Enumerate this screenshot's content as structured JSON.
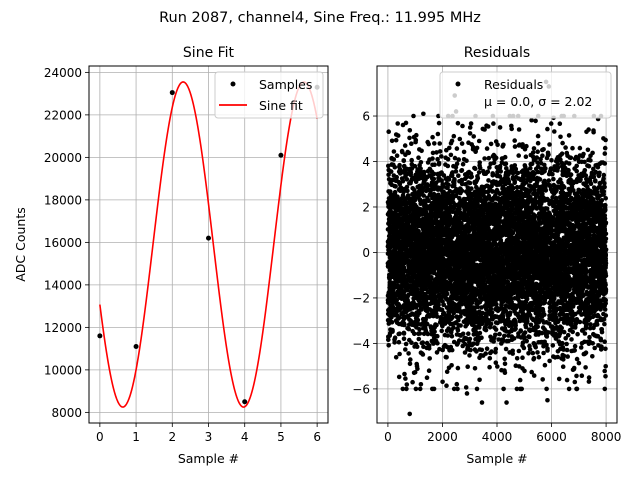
{
  "suptitle": "Run 2087, channel4, Sine Freq.: 11.995 MHz",
  "chart_data": [
    {
      "type": "line",
      "title": "Sine Fit",
      "xlabel": "Sample #",
      "ylabel": "ADC Counts",
      "xlim": [
        -0.3,
        6.3
      ],
      "ylim": [
        7500,
        24300
      ],
      "grid": true,
      "xticks": [
        0,
        1,
        2,
        3,
        4,
        5,
        6
      ],
      "yticks": [
        8000,
        10000,
        12000,
        14000,
        16000,
        18000,
        20000,
        22000,
        24000
      ],
      "legend_position": "top-right",
      "series": [
        {
          "name": "Samples",
          "kind": "scatter",
          "color": "#000000",
          "x": [
            0,
            1,
            2,
            3,
            4,
            5,
            6
          ],
          "y": [
            11600,
            11100,
            23050,
            16200,
            8500,
            20100,
            23300
          ]
        },
        {
          "name": "Sine fit",
          "kind": "line",
          "color": "#ff0000",
          "model": {
            "offset": 15900,
            "amplitude": 7650,
            "period_samples": 3.335,
            "phase_rad": 3.52
          },
          "x_range": [
            0,
            6
          ]
        }
      ]
    },
    {
      "type": "scatter",
      "title": "Residuals",
      "xlabel": "Sample #",
      "ylabel": "",
      "xlim": [
        -400,
        8400
      ],
      "ylim": [
        -7.5,
        8.2
      ],
      "grid": true,
      "xticks": [
        0,
        2000,
        4000,
        6000,
        8000
      ],
      "yticks": [
        -6,
        -4,
        -2,
        0,
        2,
        4,
        6
      ],
      "legend_position": "top-right",
      "legend_lines": [
        "Residuals",
        "μ = 0.0, σ = 2.02"
      ],
      "series": [
        {
          "name": "Residuals",
          "color": "#000000",
          "n_points": 8000,
          "x_range": [
            0,
            8000
          ],
          "mean": 0.0,
          "sigma": 2.02,
          "notable_points": [
            {
              "x": 2450,
              "y": 6.9
            },
            {
              "x": 5800,
              "y": 7.5
            },
            {
              "x": 5900,
              "y": 7.3
            },
            {
              "x": 3450,
              "y": -6.6
            },
            {
              "x": 4350,
              "y": -6.6
            },
            {
              "x": 800,
              "y": -7.1
            },
            {
              "x": 5850,
              "y": -6.5
            },
            {
              "x": 2500,
              "y": 6.2
            },
            {
              "x": 1300,
              "y": 6.1
            },
            {
              "x": 2900,
              "y": -6.2
            }
          ]
        }
      ]
    }
  ]
}
